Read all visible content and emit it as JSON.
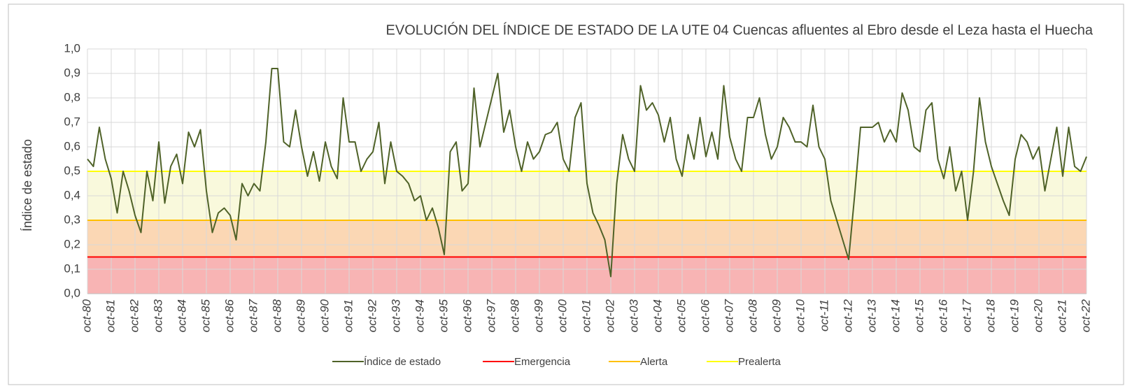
{
  "chart_data": {
    "type": "line",
    "title": "EVOLUCIÓN DEL ÍNDICE DE ESTADO DE LA UTE 04 Cuencas afluentes al Ebro desde el Leza hasta el Huecha",
    "y_label": "Índice de estado",
    "categories": [
      "oct-80",
      null,
      null,
      null,
      "oct-81",
      null,
      null,
      null,
      "oct-82",
      null,
      null,
      null,
      "oct-83",
      null,
      null,
      null,
      "oct-84",
      null,
      null,
      null,
      "oct-85",
      null,
      null,
      null,
      "oct-86",
      null,
      null,
      null,
      "oct-87",
      null,
      null,
      null,
      "oct-88",
      null,
      null,
      null,
      "oct-89",
      null,
      null,
      null,
      "oct-90",
      null,
      null,
      null,
      "oct-91",
      null,
      null,
      null,
      "oct-92",
      null,
      null,
      null,
      "oct-93",
      null,
      null,
      null,
      "oct-94",
      null,
      null,
      null,
      "oct-95",
      null,
      null,
      null,
      "oct-96",
      null,
      null,
      null,
      "oct-97",
      null,
      null,
      null,
      "oct-98",
      null,
      null,
      null,
      "oct-99",
      null,
      null,
      null,
      "oct-00",
      null,
      null,
      null,
      "oct-01",
      null,
      null,
      null,
      "oct-02",
      null,
      null,
      null,
      "oct-03",
      null,
      null,
      null,
      "oct-04",
      null,
      null,
      null,
      "oct-05",
      null,
      null,
      null,
      "oct-06",
      null,
      null,
      null,
      "oct-07",
      null,
      null,
      null,
      "oct-08",
      null,
      null,
      null,
      "oct-09",
      null,
      null,
      null,
      "oct-10",
      null,
      null,
      null,
      "oct-11",
      null,
      null,
      null,
      "oct-12",
      null,
      null,
      null,
      "oct-13",
      null,
      null,
      null,
      "oct-14",
      null,
      null,
      null,
      "oct-15",
      null,
      null,
      null,
      "oct-16",
      null,
      null,
      null,
      "oct-17",
      null,
      null,
      null,
      "oct-18",
      null,
      null,
      null,
      "oct-19",
      null,
      null,
      null,
      "oct-20",
      null,
      null,
      null,
      "oct-21",
      null,
      null,
      null,
      "oct-22"
    ],
    "series": [
      {
        "name": "Índice de estado",
        "color": "#4f6228",
        "values": [
          0.55,
          0.52,
          0.68,
          0.55,
          0.47,
          0.33,
          0.5,
          0.42,
          0.32,
          0.25,
          0.5,
          0.38,
          0.62,
          0.37,
          0.52,
          0.57,
          0.45,
          0.66,
          0.6,
          0.67,
          0.42,
          0.25,
          0.33,
          0.35,
          0.32,
          0.22,
          0.45,
          0.4,
          0.45,
          0.42,
          0.62,
          0.92,
          0.92,
          0.62,
          0.6,
          0.75,
          0.6,
          0.48,
          0.58,
          0.46,
          0.62,
          0.52,
          0.47,
          0.8,
          0.62,
          0.62,
          0.5,
          0.55,
          0.58,
          0.7,
          0.45,
          0.62,
          0.5,
          0.48,
          0.45,
          0.38,
          0.4,
          0.3,
          0.35,
          0.27,
          0.16,
          0.58,
          0.62,
          0.42,
          0.45,
          0.84,
          0.6,
          0.7,
          0.8,
          0.9,
          0.66,
          0.75,
          0.6,
          0.5,
          0.62,
          0.55,
          0.58,
          0.65,
          0.66,
          0.7,
          0.55,
          0.5,
          0.72,
          0.78,
          0.45,
          0.33,
          0.28,
          0.22,
          0.07,
          0.45,
          0.65,
          0.55,
          0.5,
          0.85,
          0.75,
          0.78,
          0.73,
          0.62,
          0.72,
          0.55,
          0.48,
          0.65,
          0.55,
          0.72,
          0.56,
          0.66,
          0.55,
          0.85,
          0.64,
          0.55,
          0.5,
          0.72,
          0.72,
          0.8,
          0.65,
          0.55,
          0.6,
          0.72,
          0.68,
          0.62,
          0.62,
          0.6,
          0.77,
          0.6,
          0.55,
          0.38,
          0.3,
          0.22,
          0.14,
          0.4,
          0.68,
          0.68,
          0.68,
          0.7,
          0.62,
          0.67,
          0.62,
          0.82,
          0.75,
          0.6,
          0.58,
          0.75,
          0.78,
          0.55,
          0.47,
          0.6,
          0.42,
          0.5,
          0.3,
          0.5,
          0.8,
          0.62,
          0.52,
          0.45,
          0.38,
          0.32,
          0.55,
          0.65,
          0.62,
          0.55,
          0.6,
          0.42,
          0.55,
          0.68,
          0.48,
          0.68,
          0.52,
          0.5,
          0.56
        ]
      },
      {
        "name": "Emergencia",
        "color": "#ff0000",
        "fill": "#f8b4b4",
        "value": 0.15
      },
      {
        "name": "Alerta",
        "color": "#ffc000",
        "fill": "#fbd7b4",
        "value": 0.3
      },
      {
        "name": "Prealerta",
        "color": "#ffff00",
        "fill": "#f9f9dc",
        "value": 0.5
      }
    ],
    "ylim": [
      0,
      1
    ],
    "yticks": [
      {
        "value": 0,
        "label": "0,0"
      },
      {
        "value": 0.1,
        "label": "0,1"
      },
      {
        "value": 0.2,
        "label": "0,2"
      },
      {
        "value": 0.3,
        "label": "0,3"
      },
      {
        "value": 0.4,
        "label": "0,4"
      },
      {
        "value": 0.5,
        "label": "0,5"
      },
      {
        "value": 0.6,
        "label": "0,6"
      },
      {
        "value": 0.7,
        "label": "0,7"
      },
      {
        "value": 0.8,
        "label": "0,8"
      },
      {
        "value": 0.9,
        "label": "0,9"
      },
      {
        "value": 1,
        "label": "1,0"
      }
    ],
    "grid": true,
    "legend": "bottom"
  }
}
